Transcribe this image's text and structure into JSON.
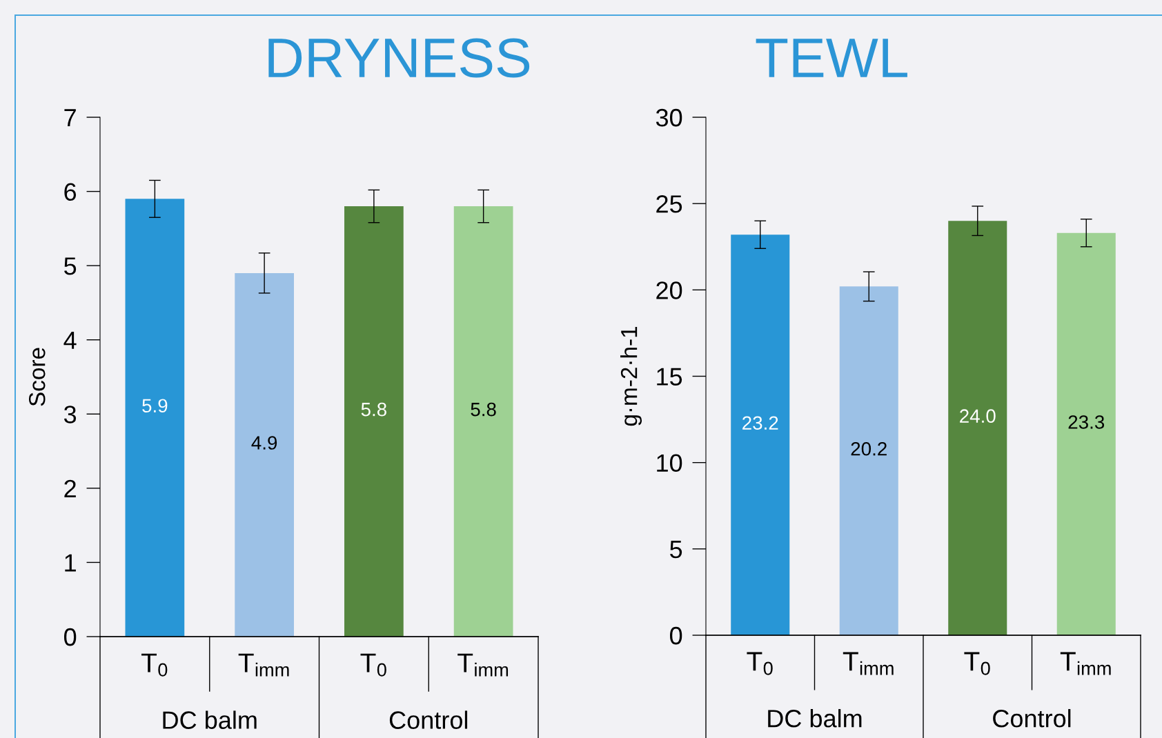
{
  "chart_data": [
    {
      "type": "bar",
      "title": "DRYNESS",
      "ylabel": "Score",
      "categories": [
        "T$_{0}$",
        "T$_{imm}$",
        "T$_{0}$",
        "T$_{imm}$"
      ],
      "values": [
        5.9,
        4.9,
        5.8,
        5.8
      ],
      "errors": [
        0.25,
        0.27,
        0.22,
        0.22
      ],
      "colors": [
        "#2896d6",
        "#9cc1e6",
        "#56873f",
        "#9ed193"
      ],
      "ylim": [
        0,
        7
      ],
      "yticks": [
        0,
        1,
        2,
        3,
        4,
        5,
        6,
        7
      ],
      "data_labels": true,
      "grid": false,
      "legend": false,
      "annotations": [
        "DC balm",
        "Control"
      ]
    },
    {
      "type": "bar",
      "title": "TEWL",
      "ylabel": "g·m-2·h-1",
      "categories": [
        "T$_{0}$",
        "T$_{imm}$",
        "T$_{0}$",
        "T$_{imm}$"
      ],
      "values": [
        23.2,
        20.2,
        24.0,
        23.3
      ],
      "value_labels": [
        "23.2",
        "20.2",
        "24.0",
        "23.3"
      ],
      "errors": [
        0.8,
        0.85,
        0.85,
        0.8
      ],
      "colors": [
        "#2896d6",
        "#9cc1e6",
        "#56873f",
        "#9ed193"
      ],
      "ylim": [
        0,
        30
      ],
      "yticks": [
        0,
        5,
        10,
        15,
        20,
        25,
        30
      ],
      "grid": false,
      "legend": false,
      "annotations": [
        "DC balm",
        "Control"
      ]
    }
  ]
}
